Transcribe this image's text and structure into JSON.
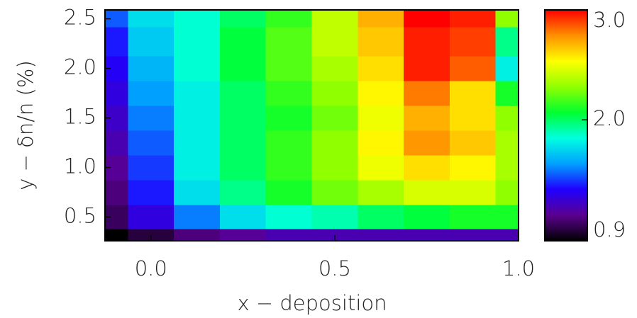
{
  "chart_data": {
    "type": "contour",
    "xlabel": "x − deposition",
    "ylabel": "y − δn/n (%)",
    "x": [
      -0.125,
      0,
      0.125,
      0.25,
      0.375,
      0.5,
      0.625,
      0.75,
      0.875,
      1.0
    ],
    "y": [
      0.26,
      0.5,
      0.75,
      1.0,
      1.25,
      1.5,
      1.75,
      2.0,
      2.25,
      2.59
    ],
    "z": [
      [
        0.9,
        1.0,
        1.1,
        1.15,
        1.2,
        1.2,
        1.2,
        1.2,
        1.2,
        1.2
      ],
      [
        1.05,
        1.3,
        1.55,
        1.75,
        1.85,
        1.9,
        2.0,
        2.05,
        2.1,
        2.1
      ],
      [
        1.1,
        1.4,
        1.75,
        1.95,
        2.1,
        2.25,
        2.35,
        2.45,
        2.45,
        2.3
      ],
      [
        1.15,
        1.45,
        1.8,
        2.0,
        2.15,
        2.3,
        2.5,
        2.6,
        2.55,
        2.35
      ],
      [
        1.2,
        1.5,
        1.8,
        2.0,
        2.15,
        2.3,
        2.55,
        2.75,
        2.65,
        2.35
      ],
      [
        1.25,
        1.55,
        1.8,
        2.0,
        2.1,
        2.25,
        2.5,
        2.7,
        2.6,
        2.3
      ],
      [
        1.3,
        1.6,
        1.8,
        2.0,
        2.15,
        2.3,
        2.55,
        2.8,
        2.6,
        2.1
      ],
      [
        1.35,
        1.65,
        1.85,
        2.05,
        2.2,
        2.35,
        2.6,
        2.95,
        2.85,
        1.8
      ],
      [
        1.4,
        1.7,
        1.85,
        2.05,
        2.2,
        2.4,
        2.65,
        2.95,
        2.9,
        1.95
      ],
      [
        1.5,
        1.75,
        1.85,
        2.0,
        2.15,
        2.4,
        2.7,
        3.0,
        2.95,
        2.3
      ]
    ],
    "xlim": [
      -0.125,
      1.0
    ],
    "ylim": [
      0.26,
      2.59
    ],
    "xticks": [
      {
        "value": 0,
        "label": "0.0"
      },
      0.5,
      {
        "value": 1,
        "label": "1.0"
      }
    ],
    "yticks": [
      0.5,
      {
        "value": 1,
        "label": "1.0"
      },
      1.5,
      {
        "value": 2,
        "label": "2.0"
      },
      2.5
    ],
    "clim": [
      0.9,
      3.0
    ],
    "cticks": [
      0.9,
      {
        "value": 2,
        "label": "2.0"
      },
      {
        "value": 3,
        "label": "3.0"
      }
    ],
    "colormap": [
      "#000000",
      "#5a0090",
      "#2000ff",
      "#00a0ff",
      "#00ffe0",
      "#00ff30",
      "#90ff00",
      "#ffff00",
      "#ff9000",
      "#ff0000"
    ]
  }
}
